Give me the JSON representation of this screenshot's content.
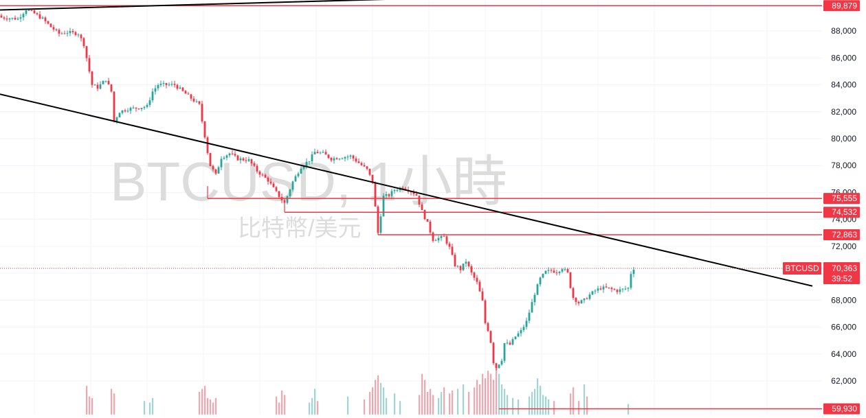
{
  "chart_data": {
    "type": "candlestick",
    "symbol": "BTCUSD",
    "watermark": {
      "title": "BTCUSD, 1小時",
      "subtitle": "比特幣/美元"
    },
    "price_axis": {
      "ticks": [
        62000,
        64000,
        66000,
        68000,
        70000,
        72000,
        74000,
        76000,
        78000,
        80000,
        82000,
        84000,
        86000,
        88000
      ],
      "tick_labels": [
        "62,000",
        "64,000",
        "66,000",
        "68,000",
        "70,000",
        "72,000",
        "74,000",
        "76,000",
        "78,000",
        "80,000",
        "82,000",
        "84,000",
        "86,000",
        "88,000"
      ],
      "ylim": [
        59500,
        90300
      ]
    },
    "current_price": {
      "label": "70,363",
      "value": 70363,
      "symbol_tag": "BTCUSD",
      "countdown": "39:52"
    },
    "level_lines": [
      {
        "label": "89,879",
        "value": 89879
      },
      {
        "label": "75,555",
        "value": 75555
      },
      {
        "label": "74,532",
        "value": 74532
      },
      {
        "label": "72,863",
        "value": 72863
      },
      {
        "label": "59,930",
        "value": 59930
      }
    ],
    "trend_lines": [
      {
        "name": "upper",
        "from": [
          0,
          89560
        ],
        "to": [
          145,
          90380
        ]
      },
      {
        "name": "descending",
        "from": [
          0,
          83300
        ],
        "to": [
          295,
          69050
        ]
      }
    ],
    "price_path": [
      [
        0,
        89000
      ],
      [
        6,
        88900
      ],
      [
        9,
        89600
      ],
      [
        12,
        89300
      ],
      [
        15,
        88900
      ],
      [
        18,
        88300
      ],
      [
        21,
        87800
      ],
      [
        24,
        87900
      ],
      [
        28,
        87800
      ],
      [
        30,
        87000
      ],
      [
        32,
        85000
      ],
      [
        33,
        84000
      ],
      [
        35,
        83800
      ],
      [
        38,
        84400
      ],
      [
        40,
        83500
      ],
      [
        41,
        81300
      ],
      [
        43,
        82000
      ],
      [
        46,
        82200
      ],
      [
        50,
        82300
      ],
      [
        53,
        82400
      ],
      [
        55,
        83500
      ],
      [
        57,
        84000
      ],
      [
        60,
        84000
      ],
      [
        63,
        84000
      ],
      [
        66,
        83500
      ],
      [
        69,
        83000
      ],
      [
        72,
        82500
      ],
      [
        73,
        81300
      ],
      [
        74,
        80200
      ],
      [
        75,
        79000
      ],
      [
        76,
        78000
      ],
      [
        78,
        77300
      ],
      [
        80,
        78600
      ],
      [
        83,
        78900
      ],
      [
        86,
        78500
      ],
      [
        90,
        78400
      ],
      [
        93,
        77600
      ],
      [
        97,
        76900
      ],
      [
        100,
        76000
      ],
      [
        103,
        75200
      ],
      [
        106,
        76800
      ],
      [
        109,
        77900
      ],
      [
        112,
        78400
      ],
      [
        114,
        79000
      ],
      [
        117,
        78900
      ],
      [
        120,
        78500
      ],
      [
        123,
        78600
      ],
      [
        127,
        78700
      ],
      [
        130,
        78200
      ],
      [
        133,
        77700
      ],
      [
        135,
        76800
      ],
      [
        136,
        74900
      ],
      [
        137,
        73000
      ],
      [
        139,
        75700
      ],
      [
        141,
        75800
      ],
      [
        143,
        76200
      ],
      [
        146,
        76400
      ],
      [
        149,
        76100
      ],
      [
        151,
        75800
      ],
      [
        153,
        74600
      ],
      [
        155,
        73700
      ],
      [
        157,
        72500
      ],
      [
        159,
        72600
      ],
      [
        161,
        72700
      ],
      [
        163,
        71900
      ],
      [
        165,
        70600
      ],
      [
        167,
        70300
      ],
      [
        169,
        70900
      ],
      [
        171,
        70000
      ],
      [
        173,
        69300
      ],
      [
        175,
        67900
      ],
      [
        176,
        66300
      ],
      [
        177,
        65800
      ],
      [
        178,
        64900
      ],
      [
        179,
        63400
      ],
      [
        180,
        63000
      ],
      [
        181,
        63300
      ],
      [
        182,
        63600
      ],
      [
        183,
        64800
      ],
      [
        185,
        64700
      ],
      [
        187,
        65300
      ],
      [
        189,
        65700
      ],
      [
        191,
        66400
      ],
      [
        192,
        67100
      ],
      [
        193,
        67800
      ],
      [
        194,
        68500
      ],
      [
        196,
        69600
      ],
      [
        198,
        70100
      ],
      [
        200,
        70200
      ],
      [
        202,
        70100
      ],
      [
        204,
        70400
      ],
      [
        206,
        70000
      ],
      [
        207,
        69000
      ],
      [
        208,
        68200
      ],
      [
        210,
        67800
      ],
      [
        212,
        68000
      ],
      [
        214,
        68400
      ],
      [
        216,
        68700
      ],
      [
        218,
        68900
      ],
      [
        220,
        68900
      ],
      [
        222,
        68800
      ],
      [
        224,
        68700
      ],
      [
        226,
        68800
      ],
      [
        228,
        68900
      ],
      [
        229,
        70000
      ],
      [
        230,
        70363
      ]
    ],
    "volume_by_bar": [
      [
        31,
        1900
      ],
      [
        32,
        1200
      ],
      [
        33,
        1100
      ],
      [
        40,
        1700
      ],
      [
        41,
        1400
      ],
      [
        52,
        900
      ],
      [
        54,
        800
      ],
      [
        55,
        1100
      ],
      [
        72,
        1500
      ],
      [
        73,
        1700
      ],
      [
        74,
        1900
      ],
      [
        75,
        1100
      ],
      [
        76,
        1000
      ],
      [
        77,
        800
      ],
      [
        78,
        1100
      ],
      [
        100,
        1200
      ],
      [
        101,
        800
      ],
      [
        102,
        1600
      ],
      [
        103,
        1300
      ],
      [
        112,
        800
      ],
      [
        113,
        1100
      ],
      [
        114,
        1700
      ],
      [
        115,
        900
      ],
      [
        126,
        1200
      ],
      [
        132,
        1000
      ],
      [
        134,
        1500
      ],
      [
        135,
        1800
      ],
      [
        136,
        2300
      ],
      [
        137,
        2600
      ],
      [
        138,
        2100
      ],
      [
        139,
        1800
      ],
      [
        140,
        1100
      ],
      [
        143,
        1400
      ],
      [
        145,
        900
      ],
      [
        152,
        1300
      ],
      [
        153,
        2700
      ],
      [
        154,
        2300
      ],
      [
        155,
        1500
      ],
      [
        156,
        1700
      ],
      [
        157,
        1300
      ],
      [
        159,
        1100
      ],
      [
        160,
        1500
      ],
      [
        161,
        1800
      ],
      [
        163,
        1400
      ],
      [
        164,
        1600
      ],
      [
        166,
        1700
      ],
      [
        168,
        2000
      ],
      [
        170,
        1500
      ],
      [
        172,
        1800
      ],
      [
        173,
        2300
      ],
      [
        174,
        2000
      ],
      [
        175,
        2700
      ],
      [
        176,
        2400
      ],
      [
        177,
        2900
      ],
      [
        178,
        2700
      ],
      [
        179,
        2300
      ],
      [
        180,
        3300
      ],
      [
        181,
        2700
      ],
      [
        182,
        2000
      ],
      [
        183,
        1700
      ],
      [
        184,
        1300
      ],
      [
        186,
        1100
      ],
      [
        188,
        1000
      ],
      [
        192,
        1200
      ],
      [
        193,
        1500
      ],
      [
        194,
        1700
      ],
      [
        195,
        2400
      ],
      [
        196,
        1900
      ],
      [
        197,
        1300
      ],
      [
        198,
        1200
      ],
      [
        199,
        1000
      ],
      [
        201,
        900
      ],
      [
        207,
        1400
      ],
      [
        208,
        1800
      ],
      [
        210,
        900
      ],
      [
        212,
        2000
      ],
      [
        213,
        1200
      ],
      [
        228,
        700
      ]
    ],
    "colors": {
      "up": "#26a69a",
      "down": "#f23645",
      "level_line": "#f23645",
      "trend_line": "#000000",
      "grid": "#f0f3fa",
      "watermark": "#dcdcdc"
    },
    "grid": true
  }
}
